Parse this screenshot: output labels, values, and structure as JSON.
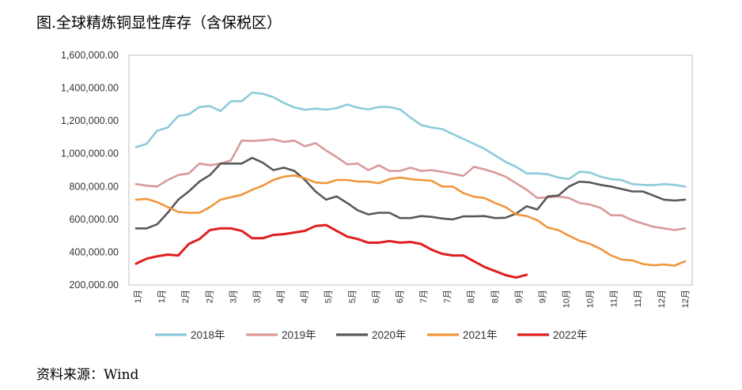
{
  "title": "图.全球精炼铜显性库存（含保税区）",
  "source": "资料来源：Wind",
  "chart_data": {
    "type": "line",
    "ylim": [
      200000,
      1600000
    ],
    "y_ticks": [
      200000,
      400000,
      600000,
      800000,
      1000000,
      1200000,
      1400000,
      1600000
    ],
    "y_tick_labels": [
      "200,000.00",
      "400,000.00",
      "600,000.00",
      "800,000.00",
      "1,000,000.00",
      "1,200,000.00",
      "1,400,000.00",
      "1,600,000.00"
    ],
    "x_tick_labels": [
      "1月",
      "1月",
      "2月",
      "2月",
      "3月",
      "3月",
      "4月",
      "4月",
      "5月",
      "5月",
      "6月",
      "6月",
      "7月",
      "7月",
      "8月",
      "8月",
      "9月",
      "9月",
      "10月",
      "10月",
      "11月",
      "11月",
      "12月",
      "12月"
    ],
    "week_count": 53,
    "grid": false,
    "legend_position": "bottom",
    "series": [
      {
        "name": "2018年",
        "color": "#8ccbd9",
        "values": [
          1040000,
          1060000,
          1140000,
          1160000,
          1230000,
          1240000,
          1285000,
          1290000,
          1260000,
          1320000,
          1320000,
          1372000,
          1365000,
          1345000,
          1310000,
          1282000,
          1268000,
          1275000,
          1268000,
          1278000,
          1300000,
          1280000,
          1270000,
          1285000,
          1285000,
          1270000,
          1220000,
          1175000,
          1160000,
          1150000,
          1120000,
          1090000,
          1060000,
          1030000,
          990000,
          950000,
          920000,
          880000,
          880000,
          875000,
          855000,
          845000,
          890000,
          885000,
          860000,
          845000,
          840000,
          815000,
          810000,
          808000,
          815000,
          810000,
          800000
        ]
      },
      {
        "name": "2019年",
        "color": "#d99a9a",
        "values": [
          815000,
          805000,
          800000,
          840000,
          870000,
          880000,
          940000,
          930000,
          940000,
          960000,
          1080000,
          1078000,
          1082000,
          1088000,
          1072000,
          1080000,
          1045000,
          1065000,
          1020000,
          980000,
          935000,
          940000,
          900000,
          930000,
          895000,
          895000,
          915000,
          895000,
          900000,
          890000,
          878000,
          865000,
          920000,
          905000,
          885000,
          860000,
          820000,
          780000,
          730000,
          735000,
          740000,
          730000,
          700000,
          690000,
          670000,
          625000,
          625000,
          595000,
          575000,
          555000,
          545000,
          535000,
          545000
        ]
      },
      {
        "name": "2020年",
        "color": "#595959",
        "values": [
          545000,
          545000,
          570000,
          640000,
          720000,
          770000,
          830000,
          870000,
          940000,
          940000,
          940000,
          975000,
          945000,
          900000,
          915000,
          895000,
          840000,
          770000,
          720000,
          740000,
          700000,
          655000,
          630000,
          640000,
          640000,
          608000,
          608000,
          620000,
          615000,
          605000,
          600000,
          618000,
          618000,
          620000,
          608000,
          610000,
          635000,
          680000,
          660000,
          740000,
          745000,
          800000,
          830000,
          825000,
          810000,
          800000,
          785000,
          770000,
          770000,
          745000,
          720000,
          715000,
          720000
        ]
      },
      {
        "name": "2021年",
        "color": "#f0963c",
        "values": [
          720000,
          725000,
          705000,
          675000,
          645000,
          640000,
          640000,
          675000,
          720000,
          735000,
          750000,
          780000,
          805000,
          840000,
          860000,
          868000,
          850000,
          825000,
          820000,
          840000,
          840000,
          830000,
          830000,
          820000,
          845000,
          855000,
          845000,
          840000,
          835000,
          800000,
          800000,
          760000,
          738000,
          730000,
          700000,
          675000,
          630000,
          620000,
          595000,
          550000,
          535000,
          500000,
          470000,
          450000,
          420000,
          380000,
          355000,
          350000,
          328000,
          320000,
          325000,
          318000,
          345000
        ]
      },
      {
        "name": "2022年",
        "color": "#e01e1e",
        "values": [
          330000,
          360000,
          375000,
          385000,
          380000,
          450000,
          480000,
          535000,
          545000,
          545000,
          530000,
          485000,
          485000,
          505000,
          510000,
          520000,
          530000,
          560000,
          565000,
          530000,
          495000,
          480000,
          458000,
          458000,
          468000,
          458000,
          462000,
          450000,
          415000,
          390000,
          380000,
          380000,
          345000,
          310000,
          285000,
          260000,
          245000,
          262000
        ]
      }
    ]
  }
}
